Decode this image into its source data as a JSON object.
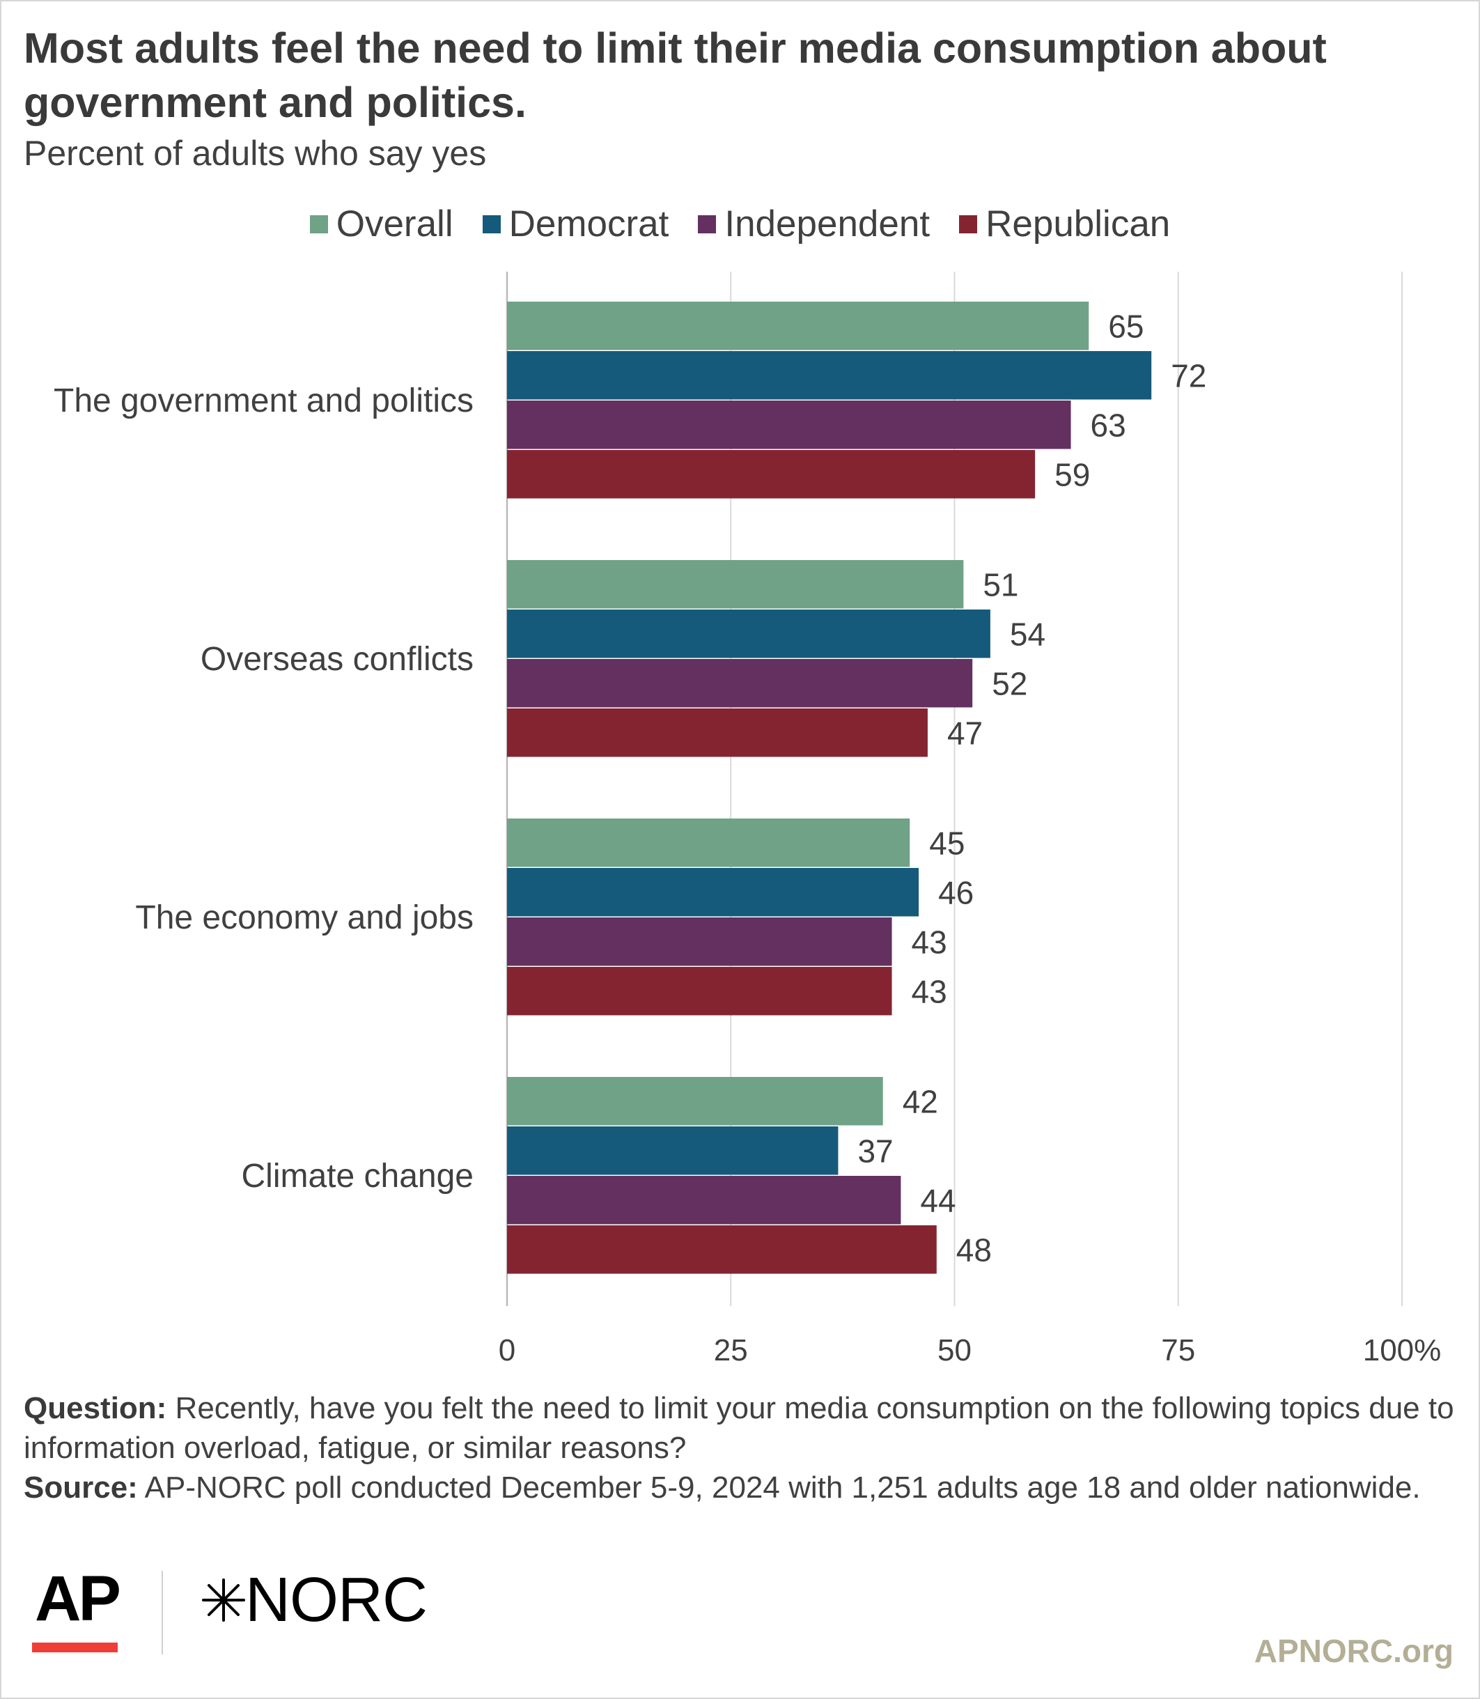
{
  "chart_data": {
    "type": "bar",
    "orientation": "horizontal",
    "title": "Most adults feel the need to limit their media consumption about government and politics.",
    "subtitle": "Percent of adults who say yes",
    "categories": [
      "The government and politics",
      "Overseas conflicts",
      "The economy and jobs",
      "Climate change"
    ],
    "series": [
      {
        "name": "Overall",
        "color": "#6fa287",
        "values": [
          65,
          51,
          45,
          42
        ]
      },
      {
        "name": "Democrat",
        "color": "#155a7a",
        "values": [
          72,
          54,
          46,
          37
        ]
      },
      {
        "name": "Independent",
        "color": "#633060",
        "values": [
          63,
          52,
          43,
          44
        ]
      },
      {
        "name": "Republican",
        "color": "#852431",
        "values": [
          59,
          47,
          43,
          48
        ]
      }
    ],
    "xlim": [
      0,
      100
    ],
    "xticks": [
      "0",
      "25",
      "50",
      "75",
      "100%"
    ],
    "grid": true,
    "legend_position": "top-center"
  },
  "footer": {
    "question_label": "Question:",
    "question_text": " Recently, have you felt the need to limit your media consumption on the following topics due to information overload, fatigue, or similar reasons?",
    "source_label": "Source:",
    "source_text": " AP-NORC poll conducted December 5-9, 2024 with 1,251 adults age 18 and older nationwide."
  },
  "logos": {
    "ap": "AP",
    "norc": "NORC",
    "site": "APNORC.org"
  }
}
